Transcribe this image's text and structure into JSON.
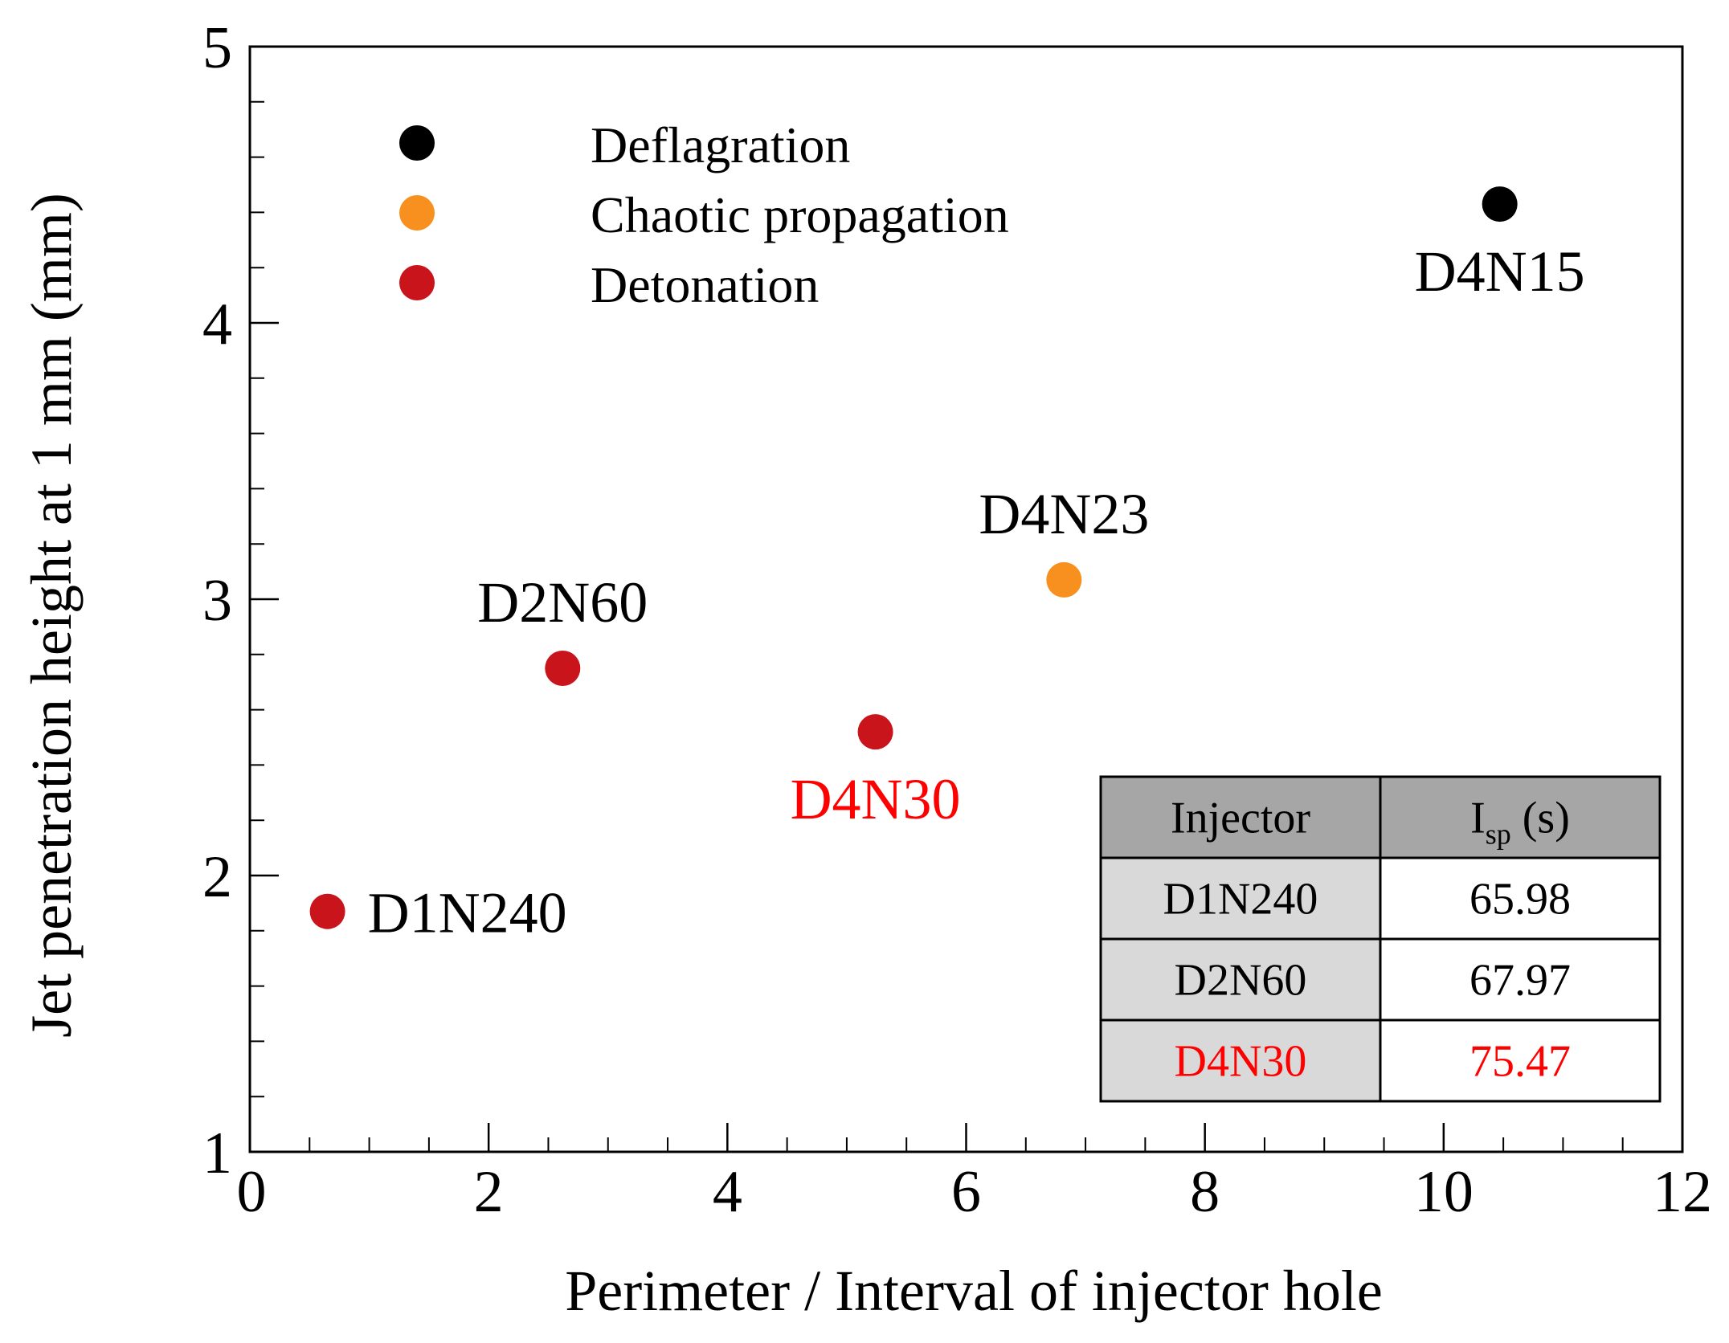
{
  "chart_data": {
    "type": "scatter",
    "title": "",
    "xlabel": "Perimeter / Interval of injector hole",
    "ylabel": "Jet penetration height at 1 mm (mm)",
    "xlim": [
      0,
      12
    ],
    "ylim": [
      1,
      5
    ],
    "x_ticks": [
      0,
      2,
      4,
      6,
      8,
      10,
      12
    ],
    "x_tick_labels": [
      "0",
      "2",
      "4",
      "6",
      "8",
      "10",
      "12"
    ],
    "x_minor_step": 0.5,
    "y_ticks": [
      1,
      2,
      3,
      4,
      5
    ],
    "y_tick_labels": [
      "1",
      "2",
      "3",
      "4",
      "5"
    ],
    "y_minor_step": 0.2,
    "grid": false,
    "legend_position": "top-left",
    "legend": [
      {
        "name": "Deflagration",
        "color": "#000000"
      },
      {
        "name": "Chaotic propagation",
        "color": "#f7901e"
      },
      {
        "name": "Detonation",
        "color": "#c8141a"
      }
    ],
    "series": [
      {
        "name": "Deflagration",
        "color": "#000000",
        "points": [
          {
            "label": "D4N15",
            "x": 10.47,
            "y": 4.43,
            "label_position": "below"
          }
        ]
      },
      {
        "name": "Chaotic propagation",
        "color": "#f7901e",
        "points": [
          {
            "label": "D4N23",
            "x": 6.82,
            "y": 3.07,
            "label_position": "above"
          }
        ]
      },
      {
        "name": "Detonation",
        "color": "#c8141a",
        "points": [
          {
            "label": "D1N240",
            "x": 0.65,
            "y": 1.87,
            "label_position": "right"
          },
          {
            "label": "D2N60",
            "x": 2.62,
            "y": 2.75,
            "label_position": "above"
          },
          {
            "label": "D4N30",
            "x": 5.24,
            "y": 2.52,
            "label_position": "below",
            "label_color": "#ff0000"
          }
        ]
      }
    ],
    "inset_table": {
      "position": "bottom-right",
      "header_bg": "#a6a6a6",
      "first_col_bg": "#d9d9d9",
      "columns": [
        {
          "main": "Injector",
          "sub": ""
        },
        {
          "main": "I",
          "sub": "sp",
          "suffix": " (s)"
        }
      ],
      "rows": [
        {
          "cells": [
            "D1N240",
            "65.98"
          ],
          "color": "#000000"
        },
        {
          "cells": [
            "D2N60",
            "67.97"
          ],
          "color": "#000000"
        },
        {
          "cells": [
            "D4N30",
            "75.47"
          ],
          "color": "#ff0000"
        }
      ]
    }
  }
}
